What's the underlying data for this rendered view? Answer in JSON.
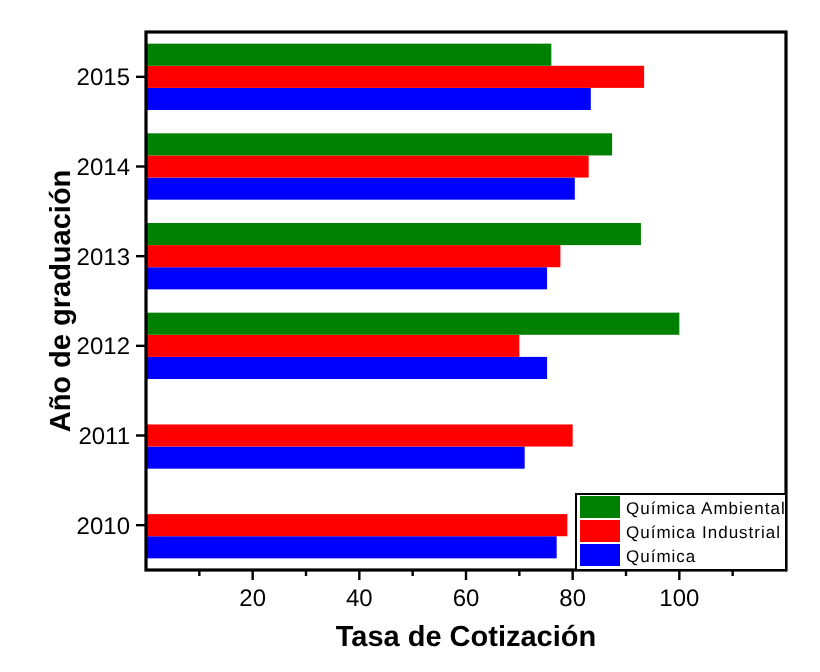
{
  "chart_data": {
    "type": "bar",
    "orientation": "horizontal",
    "xlabel": "Tasa de Cotización",
    "ylabel": "Año de graduación",
    "categories": [
      "2015",
      "2014",
      "2013",
      "2012",
      "2011",
      "2010"
    ],
    "series": [
      {
        "name": "Química",
        "color": "#0000ff",
        "values": [
          83.4,
          80.4,
          75.2,
          75.2,
          71,
          77
        ]
      },
      {
        "name": "Química Industrial",
        "color": "#ff0000",
        "values": [
          93.4,
          83,
          77.7,
          70,
          80,
          79
        ]
      },
      {
        "name": "Química Ambiental",
        "color": "#008000",
        "values": [
          76,
          87.4,
          92.8,
          100,
          null,
          null
        ]
      }
    ],
    "xlim": [
      0,
      120
    ],
    "xticks": [
      {
        "value": 10,
        "label": null
      },
      20,
      {
        "value": 30,
        "label": null
      },
      40,
      {
        "value": 50,
        "label": null
      },
      60,
      {
        "value": 70,
        "label": null
      },
      80,
      {
        "value": 90,
        "label": null
      },
      100,
      {
        "value": 110,
        "label": null
      }
    ],
    "grid": false,
    "legend": "bottom right"
  }
}
